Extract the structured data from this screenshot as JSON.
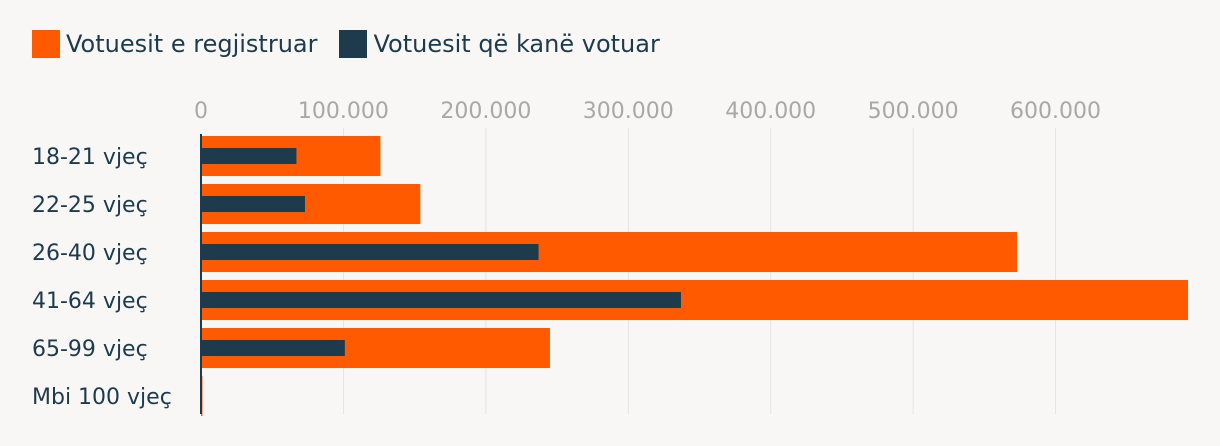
{
  "chart_data": {
    "type": "bar",
    "orientation": "horizontal",
    "categories": [
      "18-21 vjeç",
      "22-25 vjeç",
      "26-40 vjeç",
      "41-64 vjeç",
      "65-99 vjeç",
      "Mbi 100 vjeç"
    ],
    "series": [
      {
        "name": "Votuesit e regjistruar",
        "color": "#ff5a00",
        "values": [
          126000,
          154000,
          573000,
          693000,
          245000,
          1000
        ]
      },
      {
        "name": "Votuesit që kanë votuar",
        "color": "#1d3b4c",
        "values": [
          67000,
          73000,
          237000,
          337000,
          101000,
          300
        ]
      }
    ],
    "xlim": [
      0,
      693000
    ],
    "xticks": [
      {
        "value": 0,
        "label": "0"
      },
      {
        "value": 100000,
        "label": "100.000"
      },
      {
        "value": 200000,
        "label": "200.000"
      },
      {
        "value": 300000,
        "label": "300.000"
      },
      {
        "value": 400000,
        "label": "400.000"
      },
      {
        "value": 500000,
        "label": "500.000"
      },
      {
        "value": 600000,
        "label": "600.000"
      }
    ],
    "grid": true,
    "legend_position": "top-left"
  }
}
